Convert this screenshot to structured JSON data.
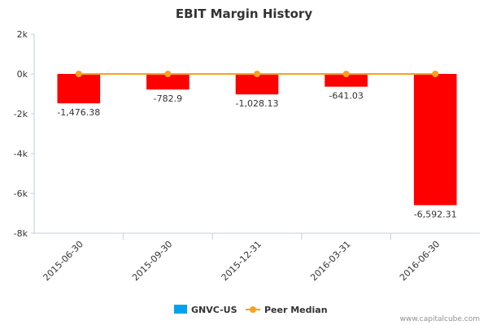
{
  "chart_data": {
    "type": "bar",
    "title": "EBIT Margin History",
    "categories": [
      "2015-06-30",
      "2015-09-30",
      "2015-12-31",
      "2016-03-31",
      "2016-06-30"
    ],
    "series": [
      {
        "name": "GNVC-US",
        "type": "bar",
        "values": [
          -1476.38,
          -782.9,
          -1028.13,
          -641.03,
          -6592.31
        ],
        "labels": [
          "-1,476.38",
          "-782.9",
          "-1,028.13",
          "-641.03",
          "-6,592.31"
        ],
        "color": "#ff0000",
        "legend_color": "#00a2ed"
      },
      {
        "name": "Peer Median",
        "type": "line",
        "values": [
          0,
          0,
          0,
          0,
          0
        ],
        "color": "#f7a21b"
      }
    ],
    "ylim": [
      -8000,
      2000
    ],
    "yticks": [
      2000,
      0,
      -2000,
      -4000,
      -6000,
      -8000
    ],
    "ytick_labels": [
      "2k",
      "0k",
      "-2k",
      "-4k",
      "-6k",
      "-8k"
    ],
    "xlabel": "",
    "ylabel": "",
    "grid": false,
    "legend_position": "bottom-center"
  },
  "credit": "www.capitalcube.com"
}
